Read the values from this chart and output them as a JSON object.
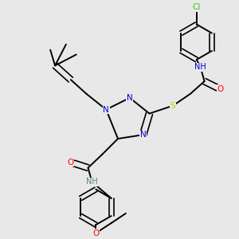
{
  "bg_color": "#e8e8e8",
  "bond_color": "#000000",
  "atom_colors": {
    "N": "#0000dd",
    "O": "#ff0000",
    "S": "#cccc00",
    "Cl": "#33cc00",
    "H_amide": "#4a8888",
    "C": "#000000"
  },
  "lw": 1.4,
  "lw_double": 1.2,
  "figsize": [
    3.0,
    3.0
  ],
  "dpi": 100,
  "fs": 7.5
}
